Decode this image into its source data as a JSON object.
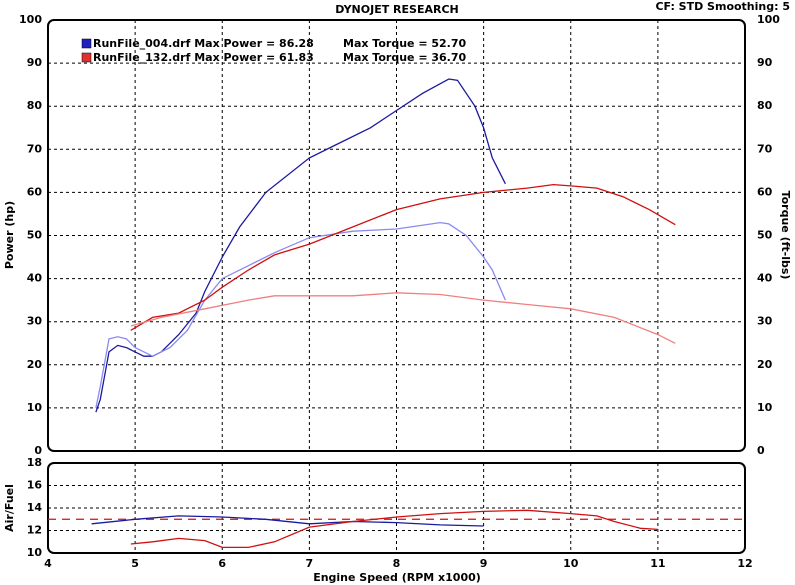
{
  "chart_data": [
    {
      "type": "line",
      "title": "DYNOJET RESEARCH",
      "annotation": "CF: STD  Smoothing: 5",
      "ylabel": "Power (hp)",
      "y2label": "Torque (ft-lbs)",
      "xlim": [
        4,
        12
      ],
      "xticks": [
        4,
        5,
        6,
        7,
        8,
        9,
        10,
        11,
        12
      ],
      "ylim": [
        0,
        100
      ],
      "yticks": [
        0,
        10,
        20,
        30,
        40,
        50,
        60,
        70,
        80,
        90,
        100
      ],
      "y2lim": [
        0,
        100
      ],
      "y2ticks": [
        0,
        10,
        20,
        30,
        40,
        50,
        60,
        70,
        80,
        90,
        100
      ],
      "grid": true,
      "legend": [
        {
          "text": "RunFile_004.drf Max Power = 86.28",
          "text2": "Max Torque = 52.70",
          "color": "#2020c0"
        },
        {
          "text": "RunFile_132.drf Max Power = 61.83",
          "text2": "Max Torque = 36.70",
          "color": "#e03030"
        }
      ],
      "series": [
        {
          "color": "#1a1aa0",
          "x": [
            4.55,
            4.6,
            4.7,
            4.8,
            4.9,
            5.0,
            5.1,
            5.2,
            5.3,
            5.5,
            5.7,
            5.8,
            6.0,
            6.2,
            6.5,
            7.0,
            7.3,
            7.7,
            8.0,
            8.3,
            8.6,
            8.7,
            8.9,
            9.0,
            9.1,
            9.25
          ],
          "values": [
            9,
            12,
            23,
            24.5,
            24,
            23,
            22,
            22,
            23,
            27,
            32,
            37,
            45,
            52,
            60,
            68,
            71,
            75,
            79,
            83,
            86.3,
            86,
            80,
            75,
            68,
            62
          ]
        },
        {
          "color": "#8a8af0",
          "axis": "y2",
          "x": [
            4.55,
            4.6,
            4.7,
            4.8,
            4.9,
            5.0,
            5.2,
            5.4,
            5.6,
            5.8,
            6.0,
            6.3,
            6.6,
            7.0,
            7.5,
            8.0,
            8.5,
            8.6,
            8.8,
            9.0,
            9.1,
            9.25
          ],
          "values": [
            10,
            15,
            26,
            26.5,
            26,
            24,
            22,
            24,
            28,
            35,
            40,
            43,
            46,
            49.5,
            51,
            51.5,
            53,
            52.7,
            50,
            45,
            42,
            35
          ]
        },
        {
          "color": "#d01010",
          "x": [
            4.95,
            5.2,
            5.5,
            5.8,
            6.0,
            6.3,
            6.6,
            7.0,
            7.5,
            8.0,
            8.5,
            9.0,
            9.5,
            9.8,
            10.0,
            10.3,
            10.6,
            10.9,
            11.2
          ],
          "values": [
            28,
            31,
            32,
            35,
            38,
            42,
            45.5,
            48,
            52,
            56,
            58.5,
            60,
            61,
            61.8,
            61.5,
            61,
            59,
            56,
            52.5
          ]
        },
        {
          "color": "#f08080",
          "axis": "y2",
          "x": [
            4.95,
            5.3,
            5.8,
            6.3,
            6.6,
            7.0,
            7.5,
            8.0,
            8.5,
            9.0,
            9.5,
            10.0,
            10.5,
            11.0,
            11.2
          ],
          "values": [
            29,
            31,
            33,
            35,
            36,
            36,
            36,
            36.7,
            36.3,
            35,
            34,
            33,
            31,
            27,
            25
          ]
        }
      ]
    },
    {
      "type": "line",
      "ylabel": "Air/Fuel",
      "xlabel": "Engine Speed (RPM x1000)",
      "xlim": [
        4,
        12
      ],
      "xticks": [
        4,
        5,
        6,
        7,
        8,
        9,
        10,
        11,
        12
      ],
      "ylim": [
        10,
        18
      ],
      "yticks": [
        10,
        12,
        14,
        16,
        18
      ],
      "grid": true,
      "reference_line": {
        "value": 13,
        "color": "#d01010"
      },
      "series": [
        {
          "color": "#1a1aa0",
          "x": [
            4.5,
            5.0,
            5.5,
            6.0,
            6.5,
            7.0,
            7.5,
            8.0,
            8.5,
            9.0
          ],
          "values": [
            12.6,
            13,
            13.3,
            13.2,
            13,
            12.6,
            12.8,
            12.7,
            12.5,
            12.4
          ]
        },
        {
          "color": "#d01010",
          "x": [
            4.95,
            5.2,
            5.5,
            5.8,
            6.0,
            6.3,
            6.6,
            7.0,
            7.5,
            8.0,
            8.5,
            9.0,
            9.5,
            10.0,
            10.3,
            10.5,
            10.8,
            11.0
          ],
          "values": [
            10.8,
            11,
            11.3,
            11.1,
            10.5,
            10.5,
            11,
            12.3,
            12.8,
            13.2,
            13.5,
            13.7,
            13.8,
            13.5,
            13.3,
            12.8,
            12.2,
            12.1
          ]
        }
      ]
    }
  ]
}
